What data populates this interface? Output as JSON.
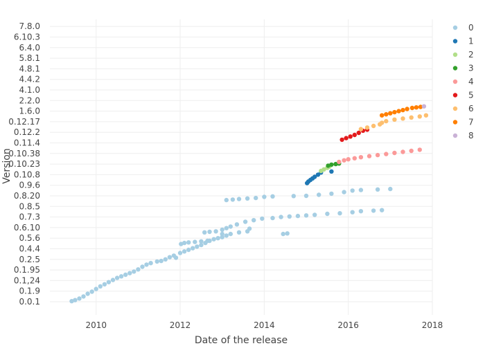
{
  "chart_data": {
    "type": "scatter",
    "xlabel": "Date of the release",
    "ylabel": "Version",
    "x_ticks": [
      "2010",
      "2012",
      "2014",
      "2016",
      "2018"
    ],
    "x_range": [
      2008.9,
      2018.0
    ],
    "y_ticks": [
      "0.0.1",
      "0.1.9",
      "0.1,24",
      "0.1.95",
      "0.2.5",
      "0.4.4",
      "0.5.6",
      "0.6.10",
      "0.7.3",
      "0.8.5",
      "0.8.20",
      "0.9.6",
      "0.10.8",
      "0.10.23",
      "0.10.38",
      "0.11.4",
      "0.12.2",
      "0.12.17",
      "1.6.0",
      "2.2.0",
      "4.1.0",
      "4.4.2",
      "4.8.1",
      "5.8.1",
      "6.4.0",
      "6.10.3",
      "7.8.0"
    ],
    "grid": true,
    "legend_position": "top-right",
    "series": [
      {
        "name": "0",
        "color": "#a6cee3",
        "points": [
          [
            2009.42,
            0.05
          ],
          [
            2009.5,
            0.15
          ],
          [
            2009.6,
            0.3
          ],
          [
            2009.7,
            0.5
          ],
          [
            2009.8,
            0.75
          ],
          [
            2009.9,
            0.95
          ],
          [
            2010.0,
            1.2
          ],
          [
            2010.1,
            1.45
          ],
          [
            2010.2,
            1.65
          ],
          [
            2010.3,
            1.85
          ],
          [
            2010.4,
            2.05
          ],
          [
            2010.5,
            2.25
          ],
          [
            2010.6,
            2.4
          ],
          [
            2010.7,
            2.55
          ],
          [
            2010.8,
            2.7
          ],
          [
            2010.9,
            2.85
          ],
          [
            2011.0,
            3.05
          ],
          [
            2011.1,
            3.3
          ],
          [
            2011.2,
            3.5
          ],
          [
            2011.3,
            3.65
          ],
          [
            2011.45,
            3.8
          ],
          [
            2011.55,
            3.85
          ],
          [
            2011.65,
            4.0
          ],
          [
            2011.75,
            4.2
          ],
          [
            2011.85,
            4.35
          ],
          [
            2011.9,
            4.15
          ],
          [
            2012.0,
            4.6
          ],
          [
            2012.1,
            4.75
          ],
          [
            2012.2,
            4.9
          ],
          [
            2012.3,
            5.05
          ],
          [
            2012.4,
            5.2
          ],
          [
            2012.5,
            5.35
          ],
          [
            2012.6,
            5.55
          ],
          [
            2012.7,
            5.75
          ],
          [
            2012.8,
            5.9
          ],
          [
            2012.9,
            6.0
          ],
          [
            2013.0,
            6.1
          ],
          [
            2013.1,
            6.25
          ],
          [
            2013.2,
            6.4
          ],
          [
            2013.4,
            6.55
          ],
          [
            2013.6,
            6.65
          ],
          [
            2013.0,
            6.4
          ],
          [
            2012.02,
            5.45
          ],
          [
            2012.1,
            5.55
          ],
          [
            2012.2,
            5.6
          ],
          [
            2012.35,
            5.65
          ],
          [
            2012.5,
            5.7
          ],
          [
            2012.65,
            5.75
          ],
          [
            2012.58,
            6.55
          ],
          [
            2012.7,
            6.6
          ],
          [
            2012.85,
            6.65
          ],
          [
            2013.0,
            6.8
          ],
          [
            2013.1,
            6.95
          ],
          [
            2013.2,
            7.1
          ],
          [
            2013.35,
            7.3
          ],
          [
            2013.55,
            7.55
          ],
          [
            2013.75,
            7.7
          ],
          [
            2013.95,
            7.85
          ],
          [
            2014.2,
            7.9
          ],
          [
            2014.4,
            8.0
          ],
          [
            2014.6,
            8.05
          ],
          [
            2014.8,
            8.1
          ],
          [
            2015.0,
            8.15
          ],
          [
            2015.2,
            8.2
          ],
          [
            2015.5,
            8.3
          ],
          [
            2015.8,
            8.35
          ],
          [
            2016.1,
            8.45
          ],
          [
            2016.3,
            8.55
          ],
          [
            2016.6,
            8.6
          ],
          [
            2016.8,
            8.65
          ],
          [
            2013.65,
            6.9
          ],
          [
            2014.45,
            6.4
          ],
          [
            2014.55,
            6.45
          ],
          [
            2013.1,
            9.6
          ],
          [
            2013.25,
            9.65
          ],
          [
            2013.4,
            9.7
          ],
          [
            2013.6,
            9.75
          ],
          [
            2013.8,
            9.8
          ],
          [
            2014.0,
            9.9
          ],
          [
            2014.2,
            9.95
          ],
          [
            2014.7,
            9.98
          ],
          [
            2015.0,
            10.0
          ],
          [
            2015.3,
            10.1
          ],
          [
            2015.6,
            10.2
          ],
          [
            2015.9,
            10.35
          ],
          [
            2016.1,
            10.5
          ],
          [
            2016.3,
            10.55
          ],
          [
            2016.7,
            10.6
          ],
          [
            2017.0,
            10.65
          ]
        ]
      },
      {
        "name": "1",
        "color": "#1f78b4",
        "points": [
          [
            2015.02,
            11.2
          ],
          [
            2015.05,
            11.35
          ],
          [
            2015.1,
            11.5
          ],
          [
            2015.15,
            11.65
          ],
          [
            2015.2,
            11.8
          ],
          [
            2015.28,
            12.0
          ],
          [
            2015.35,
            12.2
          ],
          [
            2015.6,
            12.3
          ]
        ]
      },
      {
        "name": "2",
        "color": "#b2df8a",
        "points": [
          [
            2015.35,
            12.35
          ],
          [
            2015.42,
            12.5
          ],
          [
            2015.5,
            12.65
          ],
          [
            2015.55,
            12.75
          ]
        ]
      },
      {
        "name": "3",
        "color": "#33a02c",
        "points": [
          [
            2015.52,
            12.85
          ],
          [
            2015.6,
            12.95
          ],
          [
            2015.7,
            13.0
          ],
          [
            2015.78,
            13.05
          ]
        ]
      },
      {
        "name": "4",
        "color": "#fb9a99",
        "points": [
          [
            2015.78,
            13.2
          ],
          [
            2015.9,
            13.35
          ],
          [
            2016.0,
            13.45
          ],
          [
            2016.15,
            13.55
          ],
          [
            2016.3,
            13.65
          ],
          [
            2016.5,
            13.75
          ],
          [
            2016.7,
            13.85
          ],
          [
            2016.9,
            13.95
          ],
          [
            2017.1,
            14.05
          ],
          [
            2017.3,
            14.15
          ],
          [
            2017.5,
            14.25
          ],
          [
            2017.7,
            14.35
          ]
        ]
      },
      {
        "name": "5",
        "color": "#e31a1c",
        "points": [
          [
            2015.85,
            15.3
          ],
          [
            2015.95,
            15.45
          ],
          [
            2016.05,
            15.6
          ],
          [
            2016.15,
            15.75
          ],
          [
            2016.25,
            15.95
          ],
          [
            2016.35,
            16.15
          ],
          [
            2016.45,
            16.25
          ]
        ]
      },
      {
        "name": "6",
        "color": "#fdbf6f",
        "points": [
          [
            2016.3,
            16.3
          ],
          [
            2016.45,
            16.45
          ],
          [
            2016.6,
            16.6
          ],
          [
            2016.75,
            16.75
          ],
          [
            2016.8,
            16.9
          ],
          [
            2016.9,
            17.05
          ],
          [
            2017.1,
            17.2
          ],
          [
            2017.3,
            17.3
          ],
          [
            2017.5,
            17.4
          ],
          [
            2017.7,
            17.5
          ],
          [
            2017.85,
            17.6
          ]
        ]
      },
      {
        "name": "7",
        "color": "#ff7f00",
        "points": [
          [
            2016.8,
            17.6
          ],
          [
            2016.9,
            17.7
          ],
          [
            2017.0,
            17.8
          ],
          [
            2017.1,
            17.9
          ],
          [
            2017.2,
            18.0
          ],
          [
            2017.3,
            18.1
          ],
          [
            2017.4,
            18.2
          ],
          [
            2017.52,
            18.3
          ],
          [
            2017.62,
            18.35
          ],
          [
            2017.72,
            18.4
          ]
        ]
      },
      {
        "name": "8",
        "color": "#cab2d6",
        "points": [
          [
            2017.8,
            18.45
          ]
        ]
      }
    ]
  }
}
